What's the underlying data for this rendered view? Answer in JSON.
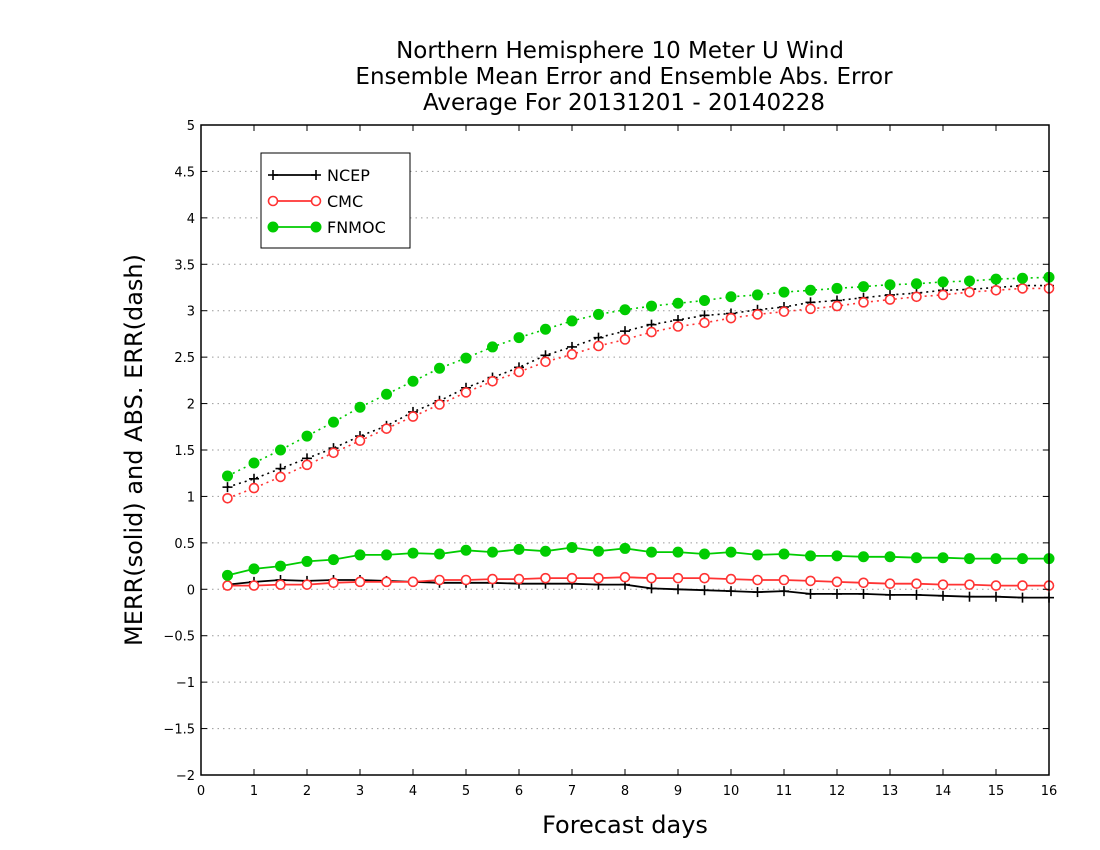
{
  "chart_data": {
    "type": "line",
    "title_lines": [
      "Northern Hemisphere 10 Meter U Wind",
      "Ensemble Mean Error and Ensemble Abs. Error",
      "Average For 20131201 - 20140228"
    ],
    "xlabel": "Forecast days",
    "ylabel": "MERR(solid) and ABS. ERR(dash)",
    "xlim": [
      0,
      16
    ],
    "ylim": [
      -2,
      5
    ],
    "x_ticks": [
      0,
      1,
      2,
      3,
      4,
      5,
      6,
      7,
      8,
      9,
      10,
      11,
      12,
      13,
      14,
      15,
      16
    ],
    "y_ticks": [
      -2,
      -1.5,
      -1,
      -0.5,
      0,
      0.5,
      1,
      1.5,
      2,
      2.5,
      3,
      3.5,
      4,
      4.5,
      5
    ],
    "grid": true,
    "legend_position": "top-left",
    "x": [
      0.5,
      1,
      1.5,
      2,
      2.5,
      3,
      3.5,
      4,
      4.5,
      5,
      5.5,
      6,
      6.5,
      7,
      7.5,
      8,
      8.5,
      9,
      9.5,
      10,
      10.5,
      11,
      11.5,
      12,
      12.5,
      13,
      13.5,
      14,
      14.5,
      15,
      15.5,
      16
    ],
    "series": [
      {
        "name": "NCEP",
        "color": "#000000",
        "marker": "plus",
        "mean_error": [
          0.05,
          0.08,
          0.1,
          0.09,
          0.1,
          0.1,
          0.09,
          0.08,
          0.07,
          0.07,
          0.07,
          0.06,
          0.06,
          0.06,
          0.05,
          0.05,
          0.01,
          0.0,
          -0.01,
          -0.02,
          -0.03,
          -0.02,
          -0.05,
          -0.05,
          -0.05,
          -0.06,
          -0.06,
          -0.07,
          -0.08,
          -0.08,
          -0.09,
          -0.09
        ],
        "abs_error": [
          1.1,
          1.19,
          1.3,
          1.41,
          1.52,
          1.65,
          1.76,
          1.91,
          2.03,
          2.17,
          2.28,
          2.39,
          2.52,
          2.61,
          2.71,
          2.78,
          2.85,
          2.9,
          2.95,
          2.97,
          3.01,
          3.04,
          3.09,
          3.11,
          3.14,
          3.17,
          3.19,
          3.22,
          3.23,
          3.25,
          3.27,
          3.27
        ]
      },
      {
        "name": "CMC",
        "color": "#ff3333",
        "marker": "open-circle",
        "mean_error": [
          0.04,
          0.04,
          0.05,
          0.05,
          0.07,
          0.08,
          0.08,
          0.08,
          0.1,
          0.1,
          0.11,
          0.11,
          0.12,
          0.12,
          0.12,
          0.13,
          0.12,
          0.12,
          0.12,
          0.11,
          0.1,
          0.1,
          0.09,
          0.08,
          0.07,
          0.06,
          0.06,
          0.05,
          0.05,
          0.04,
          0.04,
          0.04
        ],
        "abs_error": [
          0.98,
          1.09,
          1.21,
          1.34,
          1.47,
          1.6,
          1.73,
          1.86,
          1.99,
          2.12,
          2.24,
          2.34,
          2.45,
          2.53,
          2.62,
          2.69,
          2.77,
          2.83,
          2.87,
          2.92,
          2.96,
          2.99,
          3.02,
          3.05,
          3.09,
          3.12,
          3.15,
          3.17,
          3.2,
          3.22,
          3.24,
          3.24
        ]
      },
      {
        "name": "FNMOC",
        "color": "#00cc00",
        "marker": "filled-circle",
        "mean_error": [
          0.15,
          0.22,
          0.25,
          0.3,
          0.32,
          0.37,
          0.37,
          0.39,
          0.38,
          0.42,
          0.4,
          0.43,
          0.41,
          0.45,
          0.41,
          0.44,
          0.4,
          0.4,
          0.38,
          0.4,
          0.37,
          0.38,
          0.36,
          0.36,
          0.35,
          0.35,
          0.34,
          0.34,
          0.33,
          0.33,
          0.33,
          0.33
        ],
        "abs_error": [
          1.22,
          1.36,
          1.5,
          1.65,
          1.8,
          1.96,
          2.1,
          2.24,
          2.38,
          2.49,
          2.61,
          2.71,
          2.8,
          2.89,
          2.96,
          3.01,
          3.05,
          3.08,
          3.11,
          3.15,
          3.17,
          3.2,
          3.22,
          3.24,
          3.26,
          3.28,
          3.29,
          3.31,
          3.32,
          3.34,
          3.35,
          3.36
        ]
      }
    ]
  }
}
